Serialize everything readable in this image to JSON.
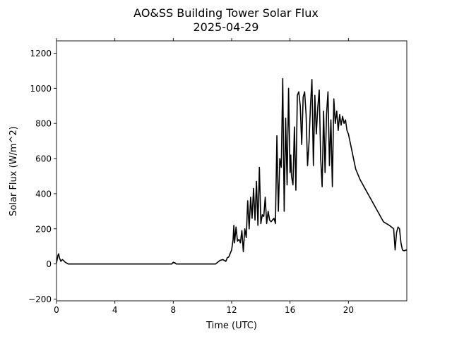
{
  "chart_data": {
    "type": "line",
    "title": "AO&SS Building Tower Solar Flux",
    "subtitle": "2025-04-29",
    "xlabel": "Time (UTC)",
    "ylabel": "Solar Flux (W/m^2)",
    "xlim": [
      0,
      24
    ],
    "ylim": [
      -210,
      1270
    ],
    "x_ticks": [
      0,
      4,
      8,
      12,
      16,
      20
    ],
    "x_tick_labels": [
      "0",
      "4",
      "8",
      "12",
      "16",
      "20"
    ],
    "y_ticks": [
      -200,
      0,
      200,
      400,
      600,
      800,
      1000,
      1200
    ],
    "y_tick_labels": [
      "−200",
      "0",
      "200",
      "400",
      "600",
      "800",
      "1000",
      "1200"
    ],
    "grid": false,
    "series": [
      {
        "color": "#000000",
        "x": [
          0,
          0.1,
          0.15,
          0.2,
          0.3,
          0.4,
          0.5,
          0.6,
          0.7,
          0.8,
          1.0,
          2.0,
          4.0,
          6.0,
          7.9,
          8.0,
          8.05,
          8.1,
          8.2,
          9.0,
          10.0,
          10.9,
          11.2,
          11.4,
          11.6,
          11.7,
          11.8,
          11.9,
          12.0,
          12.1,
          12.15,
          12.2,
          12.3,
          12.4,
          12.5,
          12.6,
          12.7,
          12.8,
          12.9,
          13.0,
          13.1,
          13.2,
          13.3,
          13.4,
          13.5,
          13.6,
          13.7,
          13.8,
          13.9,
          14.0,
          14.1,
          14.2,
          14.3,
          14.4,
          14.5,
          14.6,
          14.7,
          14.8,
          14.9,
          15.0,
          15.1,
          15.2,
          15.3,
          15.4,
          15.5,
          15.6,
          15.7,
          15.8,
          15.9,
          16.0,
          16.05,
          16.1,
          16.2,
          16.3,
          16.4,
          16.5,
          16.6,
          16.7,
          16.8,
          16.9,
          17.0,
          17.1,
          17.2,
          17.3,
          17.4,
          17.5,
          17.6,
          17.7,
          17.8,
          17.9,
          18.0,
          18.1,
          18.2,
          18.3,
          18.4,
          18.5,
          18.6,
          18.7,
          18.8,
          18.9,
          19.0,
          19.1,
          19.2,
          19.3,
          19.4,
          19.5,
          19.6,
          19.7,
          19.8,
          19.9,
          20.0,
          20.1,
          20.2,
          20.3,
          20.4,
          20.5,
          20.8,
          21.2,
          21.6,
          22.0,
          22.4,
          22.8,
          23.1,
          23.2,
          23.3,
          23.4,
          23.5,
          23.6,
          23.7,
          23.8,
          24.0
        ],
        "y": [
          5,
          50,
          58,
          35,
          15,
          25,
          18,
          10,
          5,
          0,
          0,
          0,
          0,
          0,
          0,
          10,
          5,
          8,
          0,
          0,
          0,
          0,
          20,
          25,
          15,
          35,
          40,
          60,
          80,
          140,
          220,
          120,
          210,
          130,
          140,
          120,
          190,
          70,
          200,
          150,
          360,
          200,
          380,
          260,
          430,
          250,
          470,
          220,
          550,
          230,
          280,
          270,
          380,
          230,
          300,
          250,
          240,
          250,
          260,
          230,
          730,
          300,
          600,
          550,
          1055,
          300,
          830,
          450,
          1000,
          520,
          620,
          500,
          450,
          780,
          420,
          960,
          980,
          900,
          680,
          950,
          980,
          850,
          560,
          690,
          900,
          1050,
          560,
          960,
          740,
          890,
          990,
          600,
          440,
          870,
          520,
          850,
          980,
          560,
          820,
          440,
          940,
          800,
          870,
          760,
          850,
          790,
          840,
          800,
          820,
          760,
          740,
          700,
          660,
          620,
          580,
          540,
          480,
          420,
          360,
          300,
          240,
          220,
          200,
          80,
          180,
          210,
          200,
          120,
          80,
          75,
          80
        ]
      }
    ]
  }
}
